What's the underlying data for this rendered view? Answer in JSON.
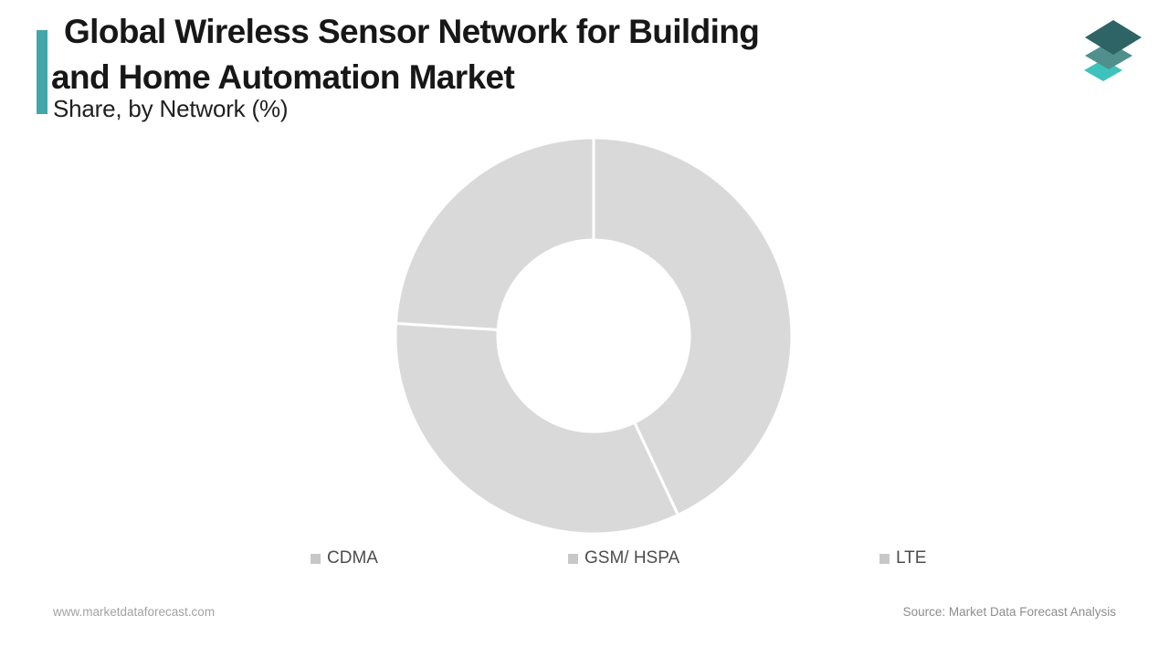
{
  "header": {
    "title_line1": "Global Wireless Sensor Network for Building",
    "title_line2": "and Home Automation Market",
    "subtitle": "Share, by Network (%)",
    "accent_color": "#43a6a8"
  },
  "branding": {
    "logo": "market-data-forecast-layers-logo",
    "logo_layer_colors": [
      "#3fc2bc",
      "#4f908d",
      "#2e6466"
    ]
  },
  "chart_data": {
    "type": "pie",
    "subtype": "donut",
    "title": "Global Wireless Sensor Network for Building and Home Automation Market",
    "subtitle": "Share, by Network (%)",
    "unit": "%",
    "categories": [
      "CDMA",
      "GSM/ HSPA",
      "LTE"
    ],
    "values": [
      43,
      33,
      24
    ],
    "start_angle_deg": 0,
    "direction": "clockwise",
    "inner_radius_ratio": 0.485,
    "slice_color": "#d9d9d9",
    "separator_color": "#ffffff",
    "legend_position": "bottom",
    "data_labels_shown": false
  },
  "legend": {
    "swatch_color": "#c8c8c8",
    "label_color": "#4d4d4d"
  },
  "footer": {
    "website": "www.marketdataforecast.com",
    "source": "Source: Market Data Forecast Analysis"
  }
}
